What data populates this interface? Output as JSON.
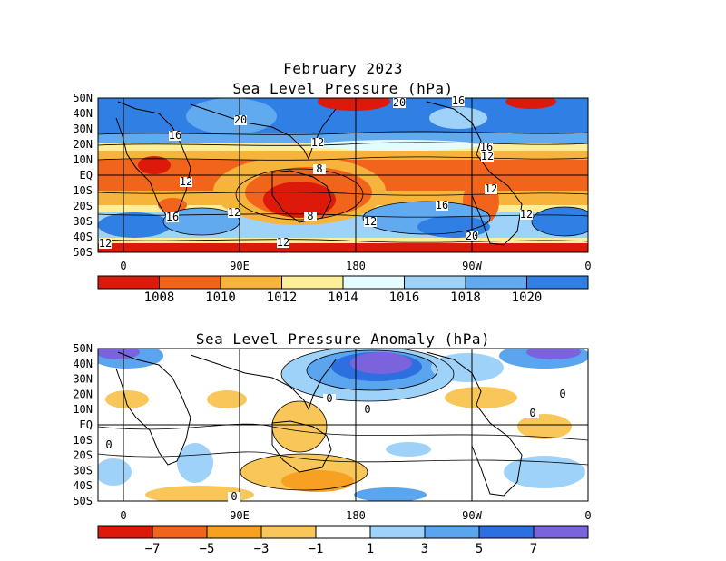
{
  "top_panel": {
    "title_line1": "February 2023",
    "title_line2": "Sea Level Pressure (hPa)",
    "lat_labels": [
      "50N",
      "40N",
      "30N",
      "20N",
      "10N",
      "EQ",
      "10S",
      "20S",
      "30S",
      "40S",
      "50S"
    ],
    "lon_labels": [
      "0",
      "90E",
      "180",
      "90W",
      "0"
    ],
    "contour_labels": [
      "20",
      "16",
      "20",
      "16",
      "12",
      "8",
      "12",
      "16",
      "12",
      "8",
      "12",
      "16",
      "12",
      "12",
      "20",
      "16",
      "12",
      "12",
      "12"
    ],
    "colorbar": {
      "colors": [
        "#dd1a0a",
        "#f2641c",
        "#f7b43c",
        "#fdee99",
        "#e4fbff",
        "#9fd2f8",
        "#62aaf0",
        "#2f7fe4"
      ],
      "labels": [
        "1008",
        "1010",
        "1012",
        "1014",
        "1016",
        "1018",
        "1020"
      ]
    }
  },
  "bottom_panel": {
    "title": "Sea Level Pressure Anomaly (hPa)",
    "lat_labels": [
      "50N",
      "40N",
      "30N",
      "20N",
      "10N",
      "EQ",
      "10S",
      "20S",
      "30S",
      "40S",
      "50S"
    ],
    "lon_labels": [
      "0",
      "90E",
      "180",
      "90W",
      "0"
    ],
    "contour_labels": [
      "0",
      "0",
      "0",
      "0",
      "0",
      "0"
    ],
    "colorbar": {
      "colors": [
        "#dd1a0a",
        "#f2641c",
        "#f7a022",
        "#f9c65a",
        "#ffffff",
        "#9fd2f8",
        "#5aa5ee",
        "#2d6fe0",
        "#7a63dc"
      ],
      "labels": [
        "−7",
        "−5",
        "−3",
        "−1",
        "1",
        "3",
        "5",
        "7"
      ]
    }
  }
}
